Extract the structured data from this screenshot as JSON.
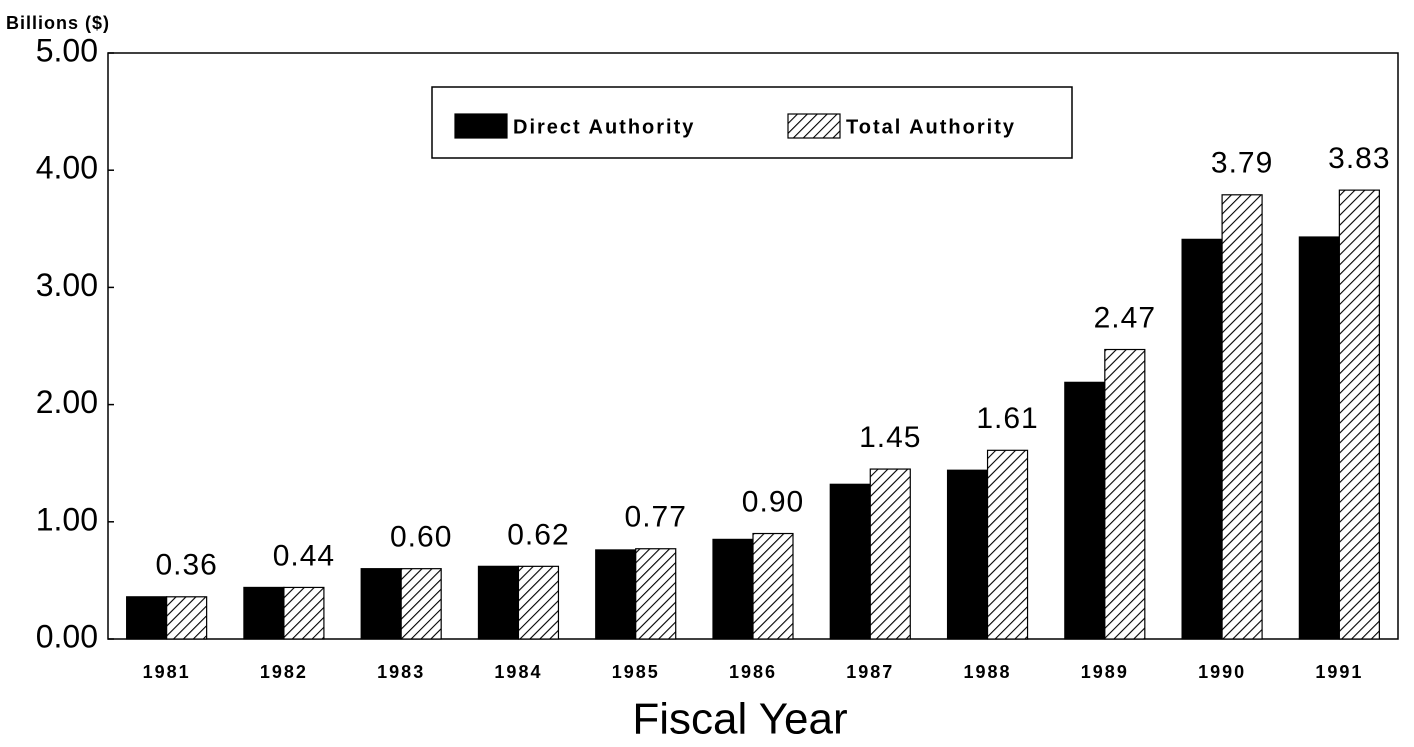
{
  "chart_data": {
    "type": "bar",
    "y_axis_label": "Billions ($)",
    "x_axis_label": "Fiscal Year",
    "categories": [
      "1981",
      "1982",
      "1983",
      "1984",
      "1985",
      "1986",
      "1987",
      "1988",
      "1989",
      "1990",
      "1991"
    ],
    "series": [
      {
        "name": "Direct Authority",
        "color": "#000000",
        "pattern": "solid",
        "values": [
          0.36,
          0.44,
          0.6,
          0.62,
          0.76,
          0.85,
          1.32,
          1.44,
          2.19,
          3.41,
          3.43
        ]
      },
      {
        "name": "Total Authority",
        "color": "#000000",
        "pattern": "hatch",
        "values": [
          0.36,
          0.44,
          0.6,
          0.62,
          0.77,
          0.9,
          1.45,
          1.61,
          2.47,
          3.79,
          3.83
        ],
        "value_labels": [
          "0.36",
          "0.44",
          "0.60",
          "0.62",
          "0.77",
          "0.90",
          "1.45",
          "1.61",
          "2.47",
          "3.79",
          "3.83"
        ]
      }
    ],
    "ylim": [
      0,
      5
    ],
    "yticks": [
      {
        "value": 0,
        "label": "0.00"
      },
      {
        "value": 1,
        "label": "1.00"
      },
      {
        "value": 2,
        "label": "2.00"
      },
      {
        "value": 3,
        "label": "3.00"
      },
      {
        "value": 4,
        "label": "4.00"
      },
      {
        "value": 5,
        "label": "5.00"
      }
    ],
    "legend": "top-center",
    "grid": false
  }
}
